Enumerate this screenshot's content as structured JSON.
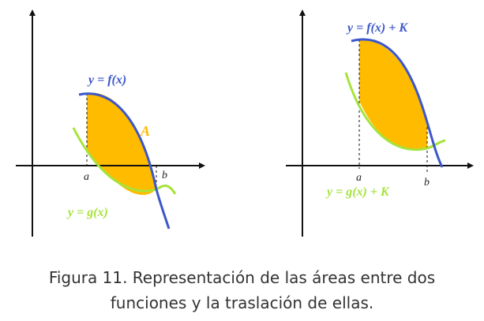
{
  "left_panel": {
    "f_label": "y = f(x)",
    "g_label": "y = g(x)",
    "area_label": "A",
    "tick_a": "a",
    "tick_b": "b"
  },
  "right_panel": {
    "f_label": "y = f(x) + K",
    "g_label": "y = g(x) + K",
    "tick_a": "a",
    "tick_b": "b"
  },
  "colors": {
    "f_curve": "#3b57c9",
    "g_curve": "#a6e33a",
    "area_fill": "#ffbb00",
    "axes": "#111111"
  },
  "caption": {
    "line1": "Figura 11. Representación de las áreas entre dos",
    "line2": "funciones y la traslación de ellas."
  }
}
